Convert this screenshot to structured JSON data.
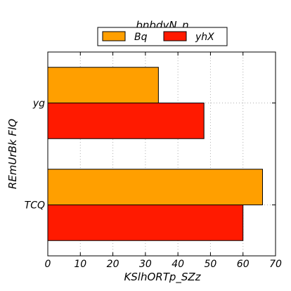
{
  "chart_data": {
    "type": "bar",
    "orientation": "horizontal",
    "title": "bnbdyN_n",
    "xlabel": "KSlhORTp_SZz",
    "ylabel": "REmUrBk FlQ",
    "categories": [
      "TCQ",
      "yg"
    ],
    "series": [
      {
        "name": "Bq",
        "color": "#ff9f00",
        "values": [
          66,
          34
        ]
      },
      {
        "name": "yhX",
        "color": "#ff1a00",
        "values": [
          60,
          48
        ]
      }
    ],
    "xlim": [
      0,
      70
    ],
    "xticks": [
      "0",
      "10",
      "20",
      "30",
      "40",
      "50",
      "60",
      "70"
    ],
    "grid": true,
    "legend_position": "top-center"
  }
}
